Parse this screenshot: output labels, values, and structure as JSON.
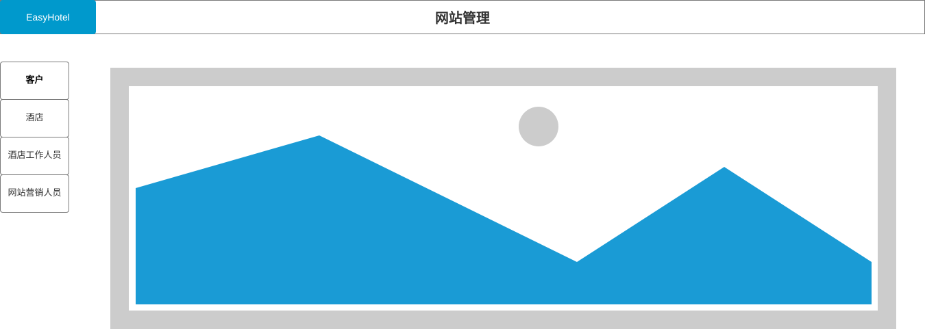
{
  "header": {
    "logo_text": "EasyHotel",
    "title": "网站管理"
  },
  "sidebar": {
    "items": [
      {
        "label": "客户",
        "active": true
      },
      {
        "label": "酒店",
        "active": false
      },
      {
        "label": "酒店工作人员",
        "active": false
      },
      {
        "label": "网站营销人员",
        "active": false
      }
    ]
  },
  "main": {
    "image_icon": "image-placeholder-icon"
  },
  "colors": {
    "brand": "#0099cc",
    "mountain": "#1a9bd5",
    "placeholder_frame": "#cccccc",
    "border": "#797979"
  }
}
